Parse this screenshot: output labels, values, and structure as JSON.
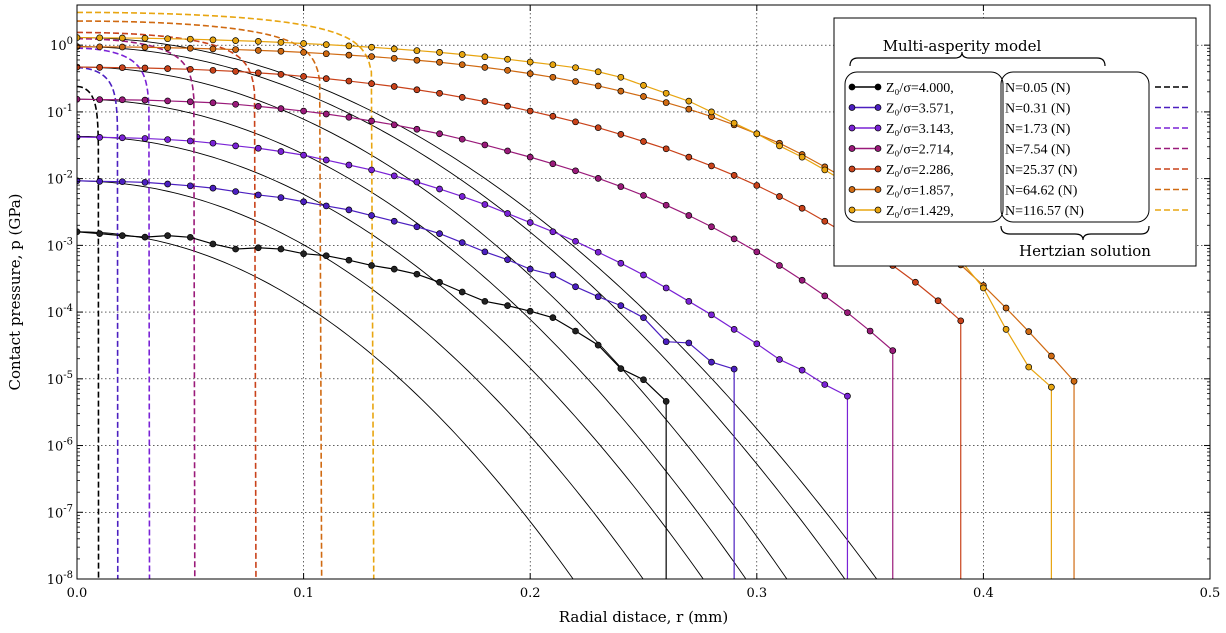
{
  "chart_data": {
    "type": "line",
    "xlabel": "Radial distace, r (mm)",
    "ylabel": "Contact pressure, p (GPa)",
    "xlim": [
      0.0,
      0.5
    ],
    "ylim": [
      1e-08,
      4
    ],
    "yscale": "log",
    "grid": true,
    "x_ticks": [
      "0.0",
      "0.1",
      "0.2",
      "0.3",
      "0.4",
      "0.5"
    ],
    "y_ticks": [
      {
        "v": 1e-08,
        "base": "10",
        "exp": "-8"
      },
      {
        "v": 1e-07,
        "base": "10",
        "exp": "-7"
      },
      {
        "v": 1e-06,
        "base": "10",
        "exp": "-6"
      },
      {
        "v": 1e-05,
        "base": "10",
        "exp": "-5"
      },
      {
        "v": 0.0001,
        "base": "10",
        "exp": "-4"
      },
      {
        "v": 0.001,
        "base": "10",
        "exp": "-3"
      },
      {
        "v": 0.01,
        "base": "10",
        "exp": "-2"
      },
      {
        "v": 0.1,
        "base": "10",
        "exp": "-1"
      },
      {
        "v": 1,
        "base": "10",
        "exp": "0"
      }
    ],
    "legend": {
      "position": "top-right",
      "title_multi": "Multi-asperity model",
      "title_hertz": "Hertzian solution",
      "entries": [
        {
          "z": "Z₀/σ=4.000,",
          "n": "N=0.05 (N)"
        },
        {
          "z": "Z₀/σ=3.571,",
          "n": "N=0.31 (N)"
        },
        {
          "z": "Z₀/σ=3.143,",
          "n": "N=1.73 (N)"
        },
        {
          "z": "Z₀/σ=2.714,",
          "n": "N=7.54 (N)"
        },
        {
          "z": "Z₀/σ=2.286,",
          "n": "N=25.37 (N)"
        },
        {
          "z": "Z₀/σ=1.857,",
          "n": "N=64.62 (N)"
        },
        {
          "z": "Z₀/σ=1.429,",
          "n": "N=116.57 (N)"
        }
      ]
    },
    "series": [
      {
        "color": "#000000",
        "hertz": {
          "p0": 0.24,
          "a": 0.0095
        },
        "smooth": {
          "p0": 0.0016,
          "c": 25
        },
        "x": [
          0.0,
          0.01,
          0.02,
          0.03,
          0.04,
          0.05,
          0.06,
          0.07,
          0.08,
          0.09,
          0.1,
          0.11,
          0.12,
          0.13,
          0.14,
          0.15,
          0.16,
          0.17,
          0.18,
          0.19,
          0.2,
          0.21,
          0.22,
          0.23,
          0.24,
          0.25,
          0.26
        ],
        "y": [
          0.0016,
          0.0015,
          0.0014,
          0.00133,
          0.0014,
          0.00132,
          0.00105,
          0.00088,
          0.00092,
          0.00088,
          0.00075,
          0.0007,
          0.0006,
          0.0005,
          0.00044,
          0.00037,
          0.00028,
          0.0002,
          0.000145,
          0.000125,
          0.000103,
          8.25e-05,
          5.2e-05,
          3.2e-05,
          1.42e-05,
          9.7e-06,
          4.6e-06
        ]
      },
      {
        "color": "#4b1fc0",
        "hertz": {
          "p0": 0.46,
          "a": 0.018
        },
        "smooth": {
          "p0": 0.0092,
          "c": 22
        },
        "x": [
          0.0,
          0.01,
          0.02,
          0.03,
          0.04,
          0.05,
          0.06,
          0.07,
          0.08,
          0.09,
          0.1,
          0.11,
          0.12,
          0.13,
          0.14,
          0.15,
          0.16,
          0.17,
          0.18,
          0.19,
          0.2,
          0.21,
          0.22,
          0.23,
          0.24,
          0.25,
          0.26,
          0.27,
          0.28,
          0.29
        ],
        "y": [
          0.0093,
          0.0091,
          0.009,
          0.0088,
          0.0083,
          0.0078,
          0.0072,
          0.0064,
          0.0057,
          0.0052,
          0.0045,
          0.0039,
          0.0034,
          0.0028,
          0.0023,
          0.0019,
          0.0015,
          0.0011,
          0.0008,
          0.00061,
          0.00044,
          0.00036,
          0.00024,
          0.00017,
          0.000125,
          8.25e-05,
          3.6e-05,
          3.45e-05,
          1.78e-05,
          1.4e-05
        ]
      },
      {
        "color": "#7a22d6",
        "hertz": {
          "p0": 0.9,
          "a": 0.032
        },
        "smooth": {
          "p0": 0.043,
          "c": 20
        },
        "x": [
          0.0,
          0.01,
          0.02,
          0.03,
          0.04,
          0.05,
          0.06,
          0.07,
          0.08,
          0.09,
          0.1,
          0.11,
          0.12,
          0.13,
          0.14,
          0.15,
          0.16,
          0.17,
          0.18,
          0.19,
          0.2,
          0.21,
          0.22,
          0.23,
          0.24,
          0.25,
          0.26,
          0.27,
          0.28,
          0.29,
          0.3,
          0.31,
          0.32,
          0.33,
          0.34
        ],
        "y": [
          0.042,
          0.0415,
          0.041,
          0.04,
          0.0385,
          0.0367,
          0.034,
          0.031,
          0.0285,
          0.0255,
          0.0225,
          0.019,
          0.016,
          0.0135,
          0.011,
          0.0089,
          0.007,
          0.0054,
          0.0041,
          0.003,
          0.0022,
          0.0016,
          0.00115,
          0.00079,
          0.00054,
          0.00036,
          0.00023,
          0.000145,
          9.1e-05,
          5.5e-05,
          3.35e-05,
          1.95e-05,
          1.35e-05,
          8.2e-06,
          5.5e-06
        ]
      },
      {
        "color": "#9a1a7a",
        "hertz": {
          "p0": 1.25,
          "a": 0.052
        },
        "smooth": {
          "p0": 0.155,
          "c": 19
        },
        "x": [
          0.0,
          0.01,
          0.02,
          0.03,
          0.04,
          0.05,
          0.06,
          0.07,
          0.08,
          0.09,
          0.1,
          0.11,
          0.12,
          0.13,
          0.14,
          0.15,
          0.16,
          0.17,
          0.18,
          0.19,
          0.2,
          0.21,
          0.22,
          0.23,
          0.24,
          0.25,
          0.26,
          0.27,
          0.28,
          0.29,
          0.3,
          0.31,
          0.32,
          0.33,
          0.34,
          0.35,
          0.36
        ],
        "y": [
          0.155,
          0.153,
          0.152,
          0.15,
          0.146,
          0.142,
          0.137,
          0.13,
          0.121,
          0.112,
          0.103,
          0.093,
          0.083,
          0.073,
          0.064,
          0.055,
          0.047,
          0.039,
          0.032,
          0.026,
          0.021,
          0.0167,
          0.0131,
          0.0101,
          0.0076,
          0.0056,
          0.004,
          0.0028,
          0.0019,
          0.00125,
          0.0008,
          0.0005,
          0.0003,
          0.000175,
          9.8e-05,
          5.2e-05,
          2.65e-05
        ]
      },
      {
        "color": "#c9421a",
        "hertz": {
          "p0": 1.55,
          "a": 0.079
        },
        "smooth": {
          "p0": 0.47,
          "c": 18
        },
        "x": [
          0.0,
          0.01,
          0.02,
          0.03,
          0.04,
          0.05,
          0.06,
          0.07,
          0.08,
          0.09,
          0.1,
          0.11,
          0.12,
          0.13,
          0.14,
          0.15,
          0.16,
          0.17,
          0.18,
          0.19,
          0.2,
          0.21,
          0.22,
          0.23,
          0.24,
          0.25,
          0.26,
          0.27,
          0.28,
          0.29,
          0.3,
          0.31,
          0.32,
          0.33,
          0.34,
          0.35,
          0.36,
          0.37,
          0.38,
          0.39
        ],
        "y": [
          0.47,
          0.465,
          0.46,
          0.455,
          0.445,
          0.435,
          0.42,
          0.405,
          0.385,
          0.365,
          0.34,
          0.315,
          0.29,
          0.265,
          0.24,
          0.215,
          0.19,
          0.165,
          0.143,
          0.122,
          0.103,
          0.086,
          0.071,
          0.058,
          0.046,
          0.036,
          0.028,
          0.021,
          0.0155,
          0.0112,
          0.0079,
          0.0054,
          0.0036,
          0.0023,
          0.00145,
          0.00087,
          0.0005,
          0.00028,
          0.000148,
          7.4e-05
        ]
      },
      {
        "color": "#d06a12",
        "hertz": {
          "p0": 2.3,
          "a": 0.108
        },
        "smooth": {
          "p0": 0.95,
          "c": 16
        },
        "x": [
          0.0,
          0.01,
          0.02,
          0.03,
          0.04,
          0.05,
          0.06,
          0.07,
          0.08,
          0.09,
          0.1,
          0.11,
          0.12,
          0.13,
          0.14,
          0.15,
          0.16,
          0.17,
          0.18,
          0.19,
          0.2,
          0.21,
          0.22,
          0.23,
          0.24,
          0.25,
          0.26,
          0.27,
          0.28,
          0.29,
          0.3,
          0.31,
          0.32,
          0.33,
          0.34,
          0.35,
          0.36,
          0.37,
          0.38,
          0.39,
          0.4,
          0.41,
          0.42,
          0.43,
          0.44
        ],
        "y": [
          0.95,
          0.945,
          0.94,
          0.93,
          0.915,
          0.9,
          0.88,
          0.86,
          0.835,
          0.81,
          0.78,
          0.745,
          0.71,
          0.675,
          0.635,
          0.595,
          0.555,
          0.51,
          0.465,
          0.42,
          0.375,
          0.33,
          0.285,
          0.245,
          0.205,
          0.17,
          0.138,
          0.11,
          0.085,
          0.064,
          0.047,
          0.034,
          0.023,
          0.015,
          0.0096,
          0.0058,
          0.0034,
          0.0019,
          0.001,
          0.00051,
          0.00025,
          0.000115,
          5.1e-05,
          2.2e-05,
          9.2e-06
        ]
      },
      {
        "color": "#e8a510",
        "hertz": {
          "p0": 3.1,
          "a": 0.131
        },
        "smooth": {
          "p0": 1.3,
          "c": 15
        },
        "x": [
          0.0,
          0.01,
          0.02,
          0.03,
          0.04,
          0.05,
          0.06,
          0.07,
          0.08,
          0.09,
          0.1,
          0.11,
          0.12,
          0.13,
          0.14,
          0.15,
          0.16,
          0.17,
          0.18,
          0.19,
          0.2,
          0.21,
          0.22,
          0.23,
          0.24,
          0.25,
          0.26,
          0.27,
          0.28,
          0.29,
          0.3,
          0.31,
          0.32,
          0.33,
          0.34,
          0.35,
          0.36,
          0.37,
          0.38,
          0.39,
          0.4,
          0.41,
          0.42,
          0.43
        ],
        "y": [
          1.3,
          1.29,
          1.28,
          1.27,
          1.25,
          1.23,
          1.2,
          1.17,
          1.14,
          1.1,
          1.06,
          1.02,
          0.975,
          0.93,
          0.88,
          0.83,
          0.78,
          0.725,
          0.67,
          0.615,
          0.56,
          0.51,
          0.46,
          0.4,
          0.33,
          0.25,
          0.19,
          0.145,
          0.1,
          0.068,
          0.047,
          0.031,
          0.021,
          0.0135,
          0.0085,
          0.0052,
          0.0031,
          0.0018,
          0.0011,
          0.00059,
          0.00023,
          5.5e-05,
          1.5e-05,
          7.5e-06
        ]
      }
    ]
  }
}
